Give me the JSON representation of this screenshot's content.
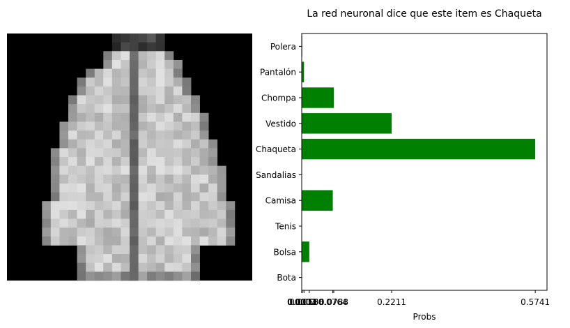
{
  "image_panel": {
    "grid_rows": 28,
    "grid_cols": 28,
    "colormap": "gray"
  },
  "chart_data": {
    "type": "bar",
    "orientation": "horizontal",
    "title": "La red neuronal dice que este item es Chaqueta",
    "xlabel": "Probs",
    "ylabel": "",
    "categories": [
      "Polera",
      "Pantalón",
      "Chompa",
      "Vestido",
      "Chaqueta",
      "Sandalias",
      "Camisa",
      "Tenis",
      "Bolsa",
      "Bota"
    ],
    "values": [
      0.0013,
      0.0056,
      0.0788,
      0.2211,
      0.5741,
      0.0001,
      0.0764,
      0.0003,
      0.0186,
      0.0002
    ],
    "xticks": [
      0.0001,
      0.0002,
      0.0003,
      0.0013,
      0.0056,
      0.0186,
      0.0764,
      0.0788,
      0.2211,
      0.5741
    ],
    "xtick_labels": [
      "0.0001",
      "0.0002",
      "0.0003",
      "0.0013",
      "0.0056",
      "0.0186",
      "0.0764",
      "0.0788",
      "0.2211",
      "0.5741"
    ],
    "xlim": [
      0,
      0.603
    ],
    "grid": false,
    "bar_color": "#008000"
  }
}
